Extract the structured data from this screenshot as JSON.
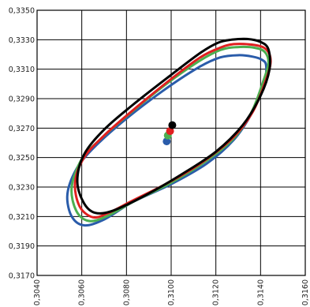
{
  "chart_data": {
    "type": "scatter",
    "title": "",
    "xlabel": "",
    "ylabel": "",
    "xlim": [
      0.304,
      0.316
    ],
    "ylim": [
      0.317,
      0.335
    ],
    "grid": true,
    "x_ticks": [
      "0,3040",
      "0,3060",
      "0,3080",
      "0,3100",
      "0,3120",
      "0,3140",
      "0,3160"
    ],
    "y_ticks": [
      "0,3350",
      "0,3330",
      "0,3310",
      "0,3290",
      "0,3270",
      "0,3250",
      "0,3230",
      "0,3210",
      "0,3190",
      "0,3170"
    ],
    "series": [
      {
        "color": "#2a5caa",
        "center": [
          0.3098,
          0.3261
        ],
        "ellipse": [
          [
            0.31305,
            0.33195
          ],
          [
            0.31365,
            0.33185
          ],
          [
            0.31405,
            0.33165
          ],
          [
            0.31425,
            0.33125
          ],
          [
            0.31415,
            0.33
          ],
          [
            0.3136,
            0.328
          ],
          [
            0.3128,
            0.3262
          ],
          [
            0.3116,
            0.3246
          ],
          [
            0.31,
            0.3232
          ],
          [
            0.3083,
            0.322
          ],
          [
            0.307,
            0.3208
          ],
          [
            0.3061,
            0.3204
          ],
          [
            0.30555,
            0.321
          ],
          [
            0.30535,
            0.3224
          ],
          [
            0.30565,
            0.3239
          ],
          [
            0.3063,
            0.3253
          ],
          [
            0.3078,
            0.3274
          ],
          [
            0.3096,
            0.3295
          ],
          [
            0.3112,
            0.3311
          ],
          [
            0.3122,
            0.3318
          ],
          [
            0.31305,
            0.33195
          ]
        ]
      },
      {
        "color": "#4caf50",
        "center": [
          0.30985,
          0.3265
        ],
        "ellipse": [
          [
            0.31295,
            0.3325
          ],
          [
            0.31375,
            0.33245
          ],
          [
            0.3142,
            0.33215
          ],
          [
            0.31435,
            0.3314
          ],
          [
            0.3141,
            0.3301
          ],
          [
            0.3136,
            0.3281
          ],
          [
            0.3128,
            0.3263
          ],
          [
            0.3115,
            0.3247
          ],
          [
            0.31,
            0.3233
          ],
          [
            0.3083,
            0.322
          ],
          [
            0.3071,
            0.321
          ],
          [
            0.3063,
            0.3207
          ],
          [
            0.30575,
            0.3214
          ],
          [
            0.30555,
            0.323
          ],
          [
            0.306,
            0.3249
          ],
          [
            0.3068,
            0.3262
          ],
          [
            0.308,
            0.3278
          ],
          [
            0.3097,
            0.3299
          ],
          [
            0.3112,
            0.3315
          ],
          [
            0.3122,
            0.3323
          ],
          [
            0.31295,
            0.3325
          ]
        ]
      },
      {
        "color": "#e02020",
        "center": [
          0.30995,
          0.3268
        ],
        "ellipse": [
          [
            0.3128,
            0.3327
          ],
          [
            0.3137,
            0.33265
          ],
          [
            0.31425,
            0.33235
          ],
          [
            0.31445,
            0.3315
          ],
          [
            0.3142,
            0.3301
          ],
          [
            0.31365,
            0.3281
          ],
          [
            0.3128,
            0.3264
          ],
          [
            0.3115,
            0.3248
          ],
          [
            0.31,
            0.3234
          ],
          [
            0.3083,
            0.3221
          ],
          [
            0.3072,
            0.32125
          ],
          [
            0.3065,
            0.32095
          ],
          [
            0.3059,
            0.3217
          ],
          [
            0.3057,
            0.3233
          ],
          [
            0.3061,
            0.325
          ],
          [
            0.307,
            0.3265
          ],
          [
            0.3082,
            0.3281
          ],
          [
            0.3098,
            0.3301
          ],
          [
            0.3112,
            0.3317
          ],
          [
            0.3121,
            0.3324
          ],
          [
            0.3128,
            0.3327
          ]
        ]
      },
      {
        "color": "#000000",
        "center": [
          0.31005,
          0.3272
        ],
        "ellipse": [
          [
            0.3127,
            0.333
          ],
          [
            0.3134,
            0.33305
          ],
          [
            0.314,
            0.33285
          ],
          [
            0.31435,
            0.33235
          ],
          [
            0.3144,
            0.331
          ],
          [
            0.314,
            0.3292
          ],
          [
            0.3132,
            0.3272
          ],
          [
            0.312,
            0.3254
          ],
          [
            0.3104,
            0.3238
          ],
          [
            0.3088,
            0.3224
          ],
          [
            0.3074,
            0.3214
          ],
          [
            0.3066,
            0.32125
          ],
          [
            0.3061,
            0.3219
          ],
          [
            0.3058,
            0.3234
          ],
          [
            0.3061,
            0.3252
          ],
          [
            0.307,
            0.3269
          ],
          [
            0.3083,
            0.3286
          ],
          [
            0.3099,
            0.3305
          ],
          [
            0.3113,
            0.3321
          ],
          [
            0.3121,
            0.3328
          ],
          [
            0.3127,
            0.333
          ]
        ]
      }
    ]
  }
}
